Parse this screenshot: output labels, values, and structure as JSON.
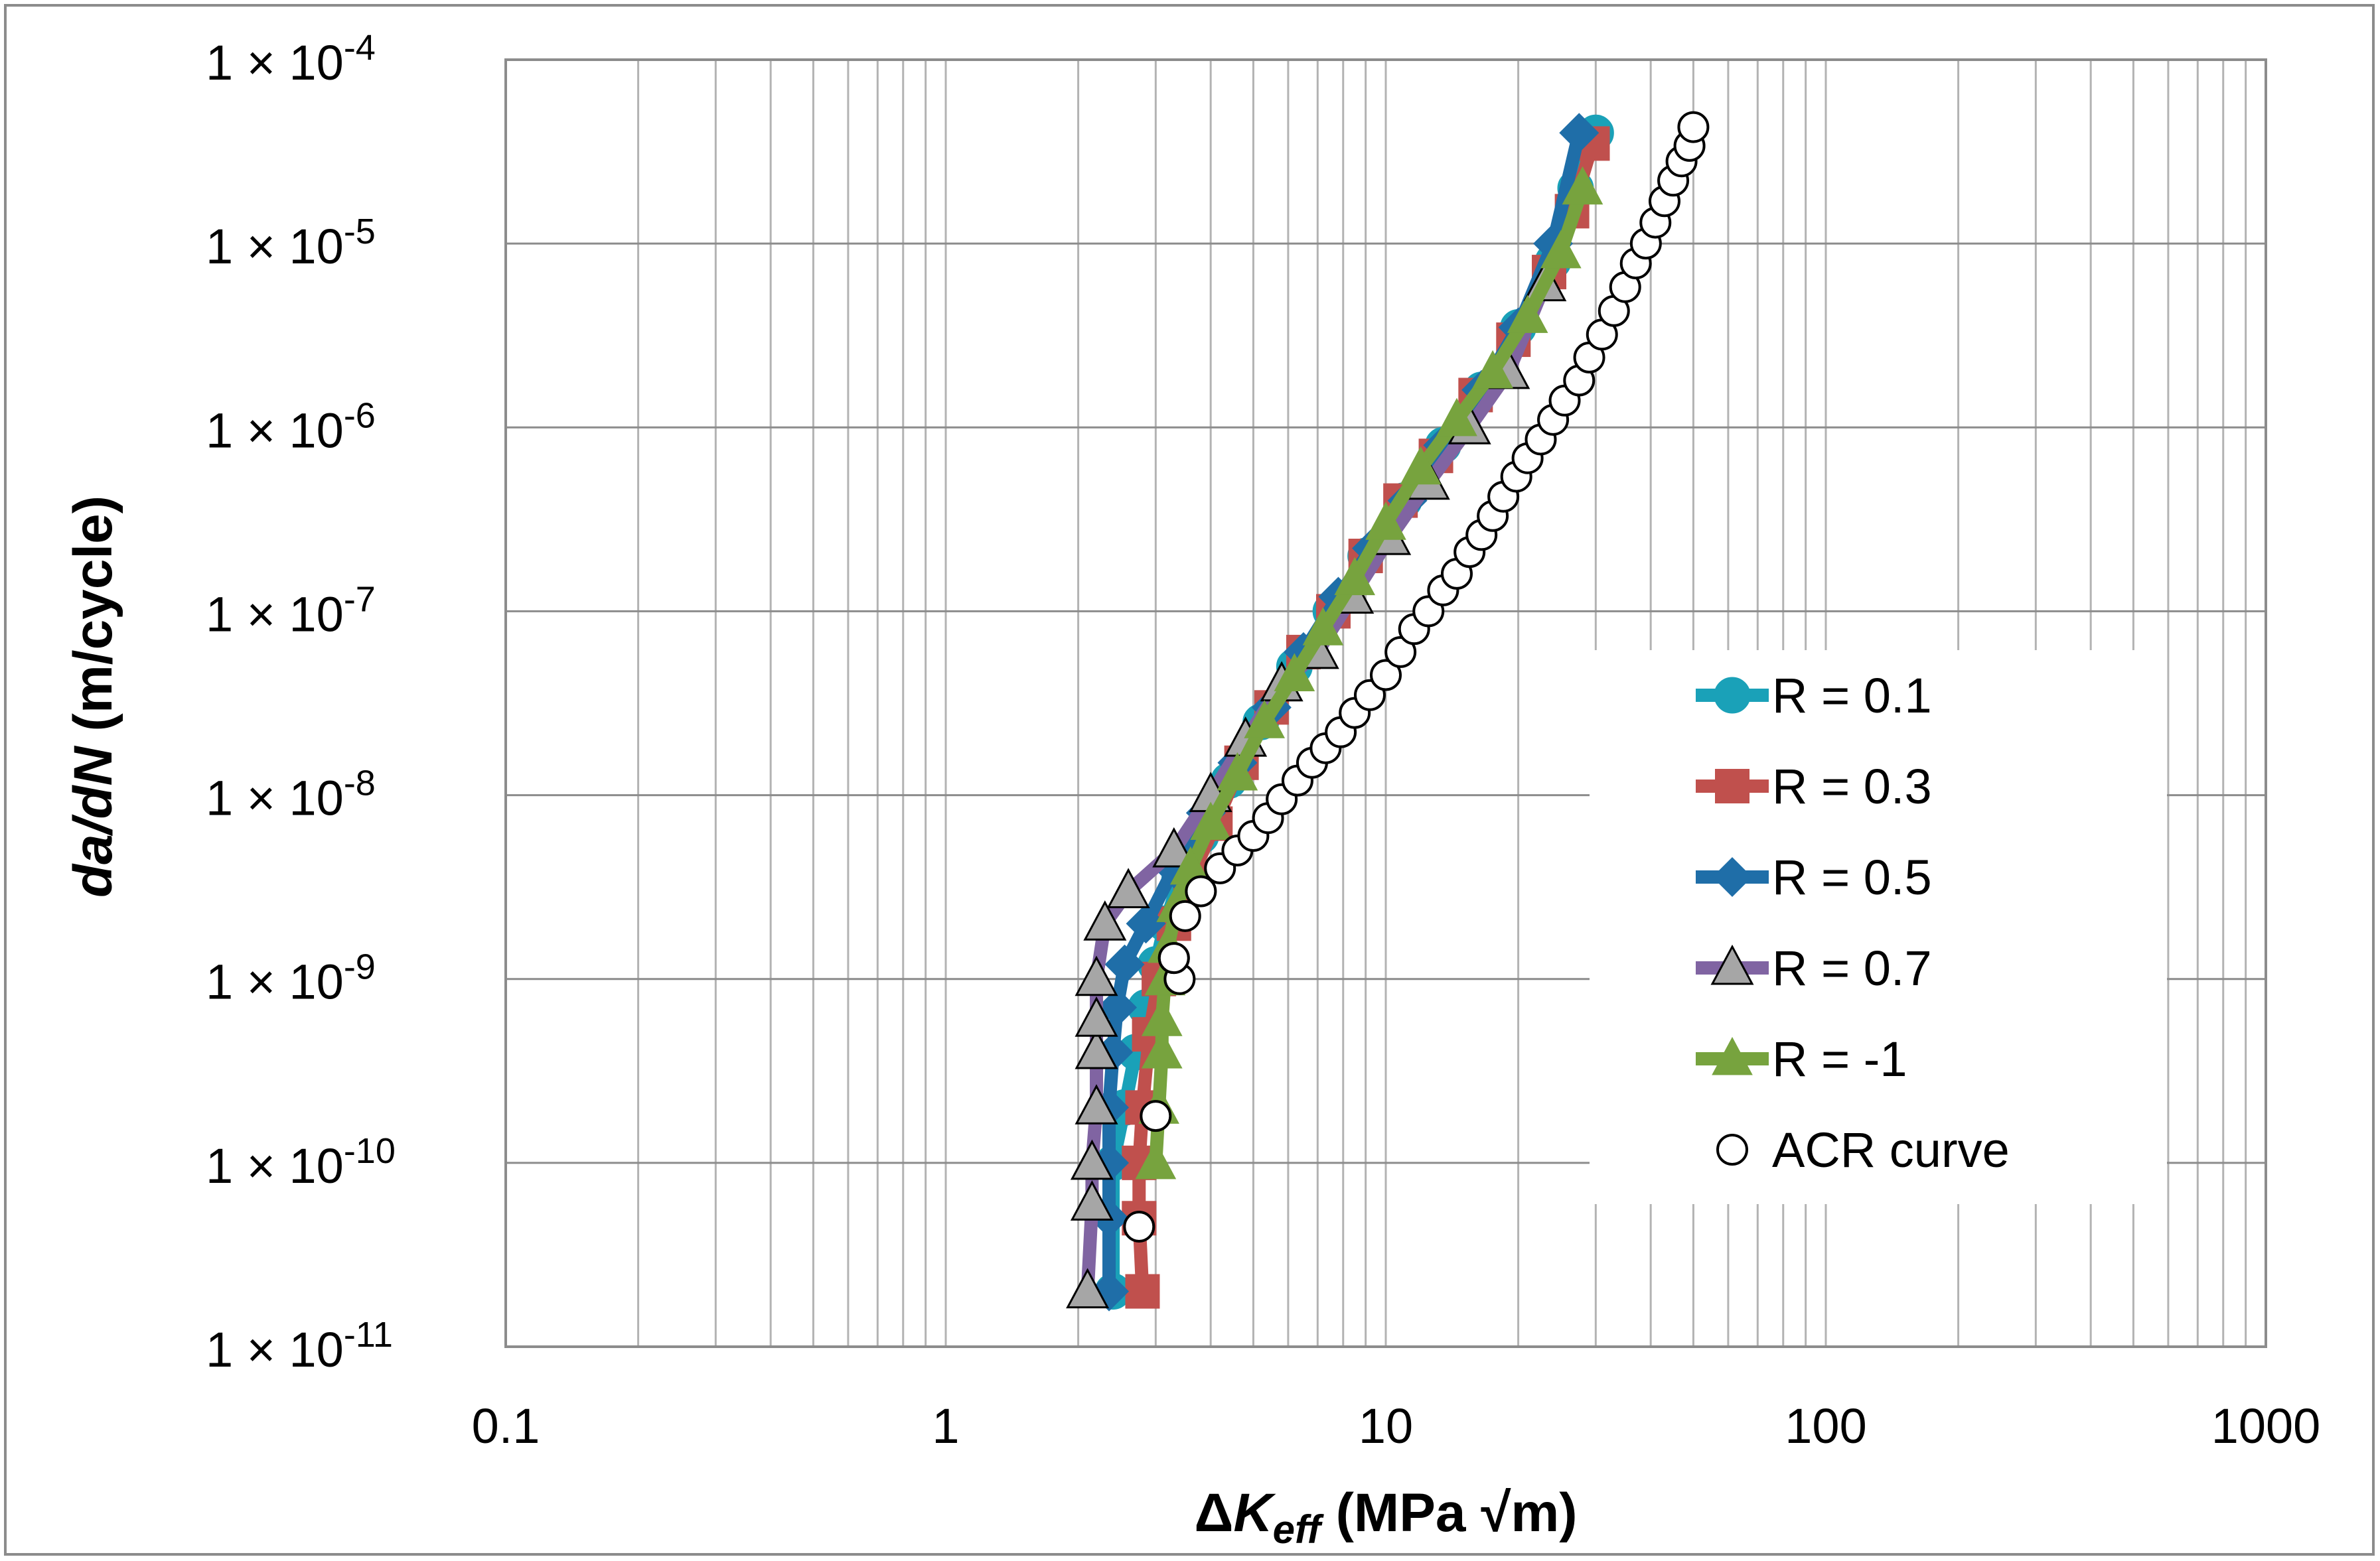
{
  "chart_data": {
    "type": "scatter",
    "title": "",
    "xscale": "log",
    "yscale": "log",
    "xlim": [
      0.1,
      1000
    ],
    "ylim": [
      1e-11,
      0.0001
    ],
    "grid": true,
    "legend_position": "right",
    "x_tick_labels": [
      "0.1",
      "1",
      "10",
      "100",
      "1000"
    ],
    "y_ticks": [
      {
        "base": "1 × 10",
        "exp": "-4"
      },
      {
        "base": "1 × 10",
        "exp": "-5"
      },
      {
        "base": "1 × 10",
        "exp": "-6"
      },
      {
        "base": "1 × 10",
        "exp": "-7"
      },
      {
        "base": "1 × 10",
        "exp": "-8"
      },
      {
        "base": "1 × 10",
        "exp": "-9"
      },
      {
        "base": "1 × 10",
        "exp": "-10"
      },
      {
        "base": "1 × 10",
        "exp": "-11"
      }
    ],
    "xlabel": {
      "prefix": "Δ",
      "var": "K",
      "sub": "eff",
      "unit": " (MPa √m)"
    },
    "ylabel": {
      "var": "da/dN",
      "unit": " (m/cycle)"
    },
    "series": [
      {
        "name": "R = 0.1",
        "color": "#1aa1b8",
        "marker": "circle",
        "line": true,
        "x": [
          2.4,
          2.4,
          2.55,
          2.7,
          2.85,
          3.0,
          3.15,
          3.4,
          3.8,
          4.4,
          5.2,
          6.2,
          7.5,
          9.0,
          11.0,
          13.5,
          16.5,
          20.0,
          24.0,
          27.0,
          30.0
        ],
        "y": [
          2e-11,
          1e-10,
          2e-10,
          4e-10,
          7e-10,
          1.2e-09,
          2e-09,
          3.5e-09,
          6e-09,
          1.2e-08,
          2.5e-08,
          5e-08,
          1e-07,
          2e-07,
          4e-07,
          8e-07,
          1.6e-06,
          3.5e-06,
          8e-06,
          2e-05,
          4e-05
        ]
      },
      {
        "name": "R = 0.3",
        "color": "#c0504d",
        "marker": "square",
        "line": true,
        "x": [
          2.8,
          2.75,
          2.75,
          2.8,
          2.9,
          3.05,
          3.3,
          3.6,
          4.1,
          4.7,
          5.5,
          6.5,
          7.6,
          9.0,
          10.8,
          13.0,
          16.0,
          19.5,
          23.5,
          26.5,
          29.5
        ],
        "y": [
          2e-11,
          5e-11,
          1e-10,
          2e-10,
          5e-10,
          1e-09,
          2e-09,
          3.5e-09,
          7e-09,
          1.5e-08,
          3e-08,
          6e-08,
          1e-07,
          2e-07,
          4e-07,
          7e-07,
          1.5e-06,
          3e-06,
          7e-06,
          1.5e-05,
          3.5e-05
        ]
      },
      {
        "name": "R = 0.5",
        "color": "#1f6ea8",
        "marker": "diamond",
        "line": true,
        "x": [
          2.35,
          2.35,
          2.35,
          2.35,
          2.4,
          2.45,
          2.55,
          2.85,
          3.3,
          3.9,
          4.6,
          5.5,
          6.5,
          7.8,
          9.3,
          11.2,
          13.5,
          16.5,
          20.0,
          24.0,
          27.5
        ],
        "y": [
          2e-11,
          5e-11,
          1e-10,
          2e-10,
          4e-10,
          7e-10,
          1.2e-09,
          2e-09,
          4e-09,
          8e-09,
          1.5e-08,
          3e-08,
          6e-08,
          1.2e-07,
          2.2e-07,
          4e-07,
          8e-07,
          1.6e-06,
          3.5e-06,
          1e-05,
          4e-05
        ]
      },
      {
        "name": "R = 0.7",
        "color": "#8064a2",
        "marker": "triangle",
        "line": true,
        "marker_fill": "#a6a6a6",
        "x": [
          2.1,
          2.15,
          2.15,
          2.2,
          2.2,
          2.2,
          2.2,
          2.3,
          2.6,
          3.3,
          4.0,
          4.8,
          5.8,
          7.0,
          8.4,
          10.2,
          12.5,
          15.5,
          19.0,
          23.0
        ],
        "y": [
          2e-11,
          6e-11,
          1e-10,
          2e-10,
          4e-10,
          6e-10,
          1e-09,
          2e-09,
          3e-09,
          5e-09,
          1e-08,
          2e-08,
          4e-08,
          6e-08,
          1.2e-07,
          2.5e-07,
          5e-07,
          1e-06,
          2e-06,
          6e-06
        ]
      },
      {
        "name": "R = -1",
        "color": "#77a33e",
        "marker": "triangle",
        "line": true,
        "x": [
          3.0,
          3.05,
          3.1,
          3.1,
          3.15,
          3.2,
          3.35,
          3.6,
          4.0,
          4.6,
          5.3,
          6.2,
          7.2,
          8.5,
          10.0,
          12.0,
          14.5,
          17.5,
          21.0,
          25.0,
          28.0
        ],
        "y": [
          1e-10,
          2e-10,
          4e-10,
          6e-10,
          1e-09,
          1.5e-09,
          2.5e-09,
          4e-09,
          7e-09,
          1.3e-08,
          2.5e-08,
          4.5e-08,
          8e-08,
          1.5e-07,
          3e-07,
          6e-07,
          1.1e-06,
          2e-06,
          4e-06,
          9e-06,
          2e-05
        ]
      },
      {
        "name": "ACR curve",
        "color": "#000000",
        "marker": "open-circle",
        "line": false,
        "x": [
          2.75,
          3.0,
          3.4,
          3.3,
          3.3,
          3.5,
          3.8,
          4.2,
          4.6,
          5.0,
          5.4,
          5.8,
          6.3,
          6.8,
          7.3,
          7.9,
          8.5,
          9.2,
          10.0,
          10.8,
          11.6,
          12.5,
          13.5,
          14.5,
          15.5,
          16.5,
          17.5,
          18.5,
          19.8,
          21.0,
          22.5,
          24.0,
          25.5,
          27.5,
          29.0,
          31.0,
          33.0,
          35.0,
          37.0,
          39.0,
          41.0,
          43.0,
          45.0,
          47.0,
          49.0,
          50.0
        ],
        "y": [
          4.5e-11,
          1.8e-10,
          1e-09,
          1.3e-09,
          1.3e-09,
          2.2e-09,
          3e-09,
          4e-09,
          5e-09,
          6e-09,
          7.5e-09,
          9.5e-09,
          1.2e-08,
          1.5e-08,
          1.8e-08,
          2.2e-08,
          2.8e-08,
          3.5e-08,
          4.5e-08,
          6e-08,
          8e-08,
          1e-07,
          1.3e-07,
          1.6e-07,
          2.1e-07,
          2.6e-07,
          3.3e-07,
          4.2e-07,
          5.4e-07,
          6.8e-07,
          8.6e-07,
          1.1e-06,
          1.4e-06,
          1.8e-06,
          2.4e-06,
          3.2e-06,
          4.3e-06,
          5.8e-06,
          7.8e-06,
          1e-05,
          1.3e-05,
          1.7e-05,
          2.2e-05,
          2.8e-05,
          3.4e-05,
          4.3e-05
        ]
      }
    ]
  }
}
